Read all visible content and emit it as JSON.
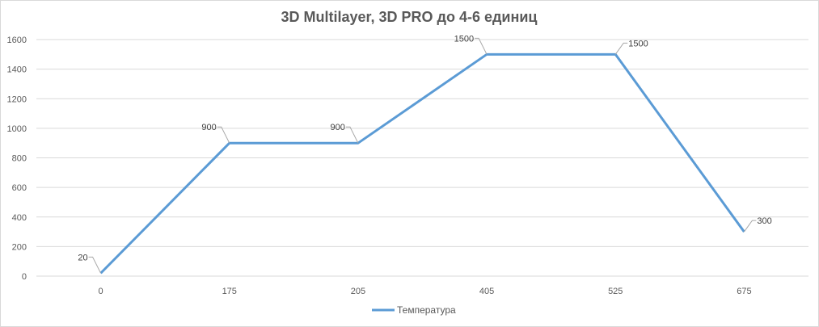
{
  "chart_data": {
    "type": "line",
    "title": "3D Multilayer, 3D PRO до 4-6 единиц",
    "categories": [
      "0",
      "175",
      "205",
      "405",
      "525",
      "675"
    ],
    "series": [
      {
        "name": "Температура",
        "values": [
          20,
          900,
          900,
          1500,
          1500,
          300
        ],
        "color": "#5b9bd5"
      }
    ],
    "data_labels": [
      "20",
      "900",
      "900",
      "1500",
      "1500",
      "300"
    ],
    "ylim": [
      0,
      1600
    ],
    "yticks": [
      0,
      200,
      400,
      600,
      800,
      1000,
      1200,
      1400,
      1600
    ],
    "grid": true,
    "legend": "bottom",
    "xlabel": "",
    "ylabel": ""
  }
}
